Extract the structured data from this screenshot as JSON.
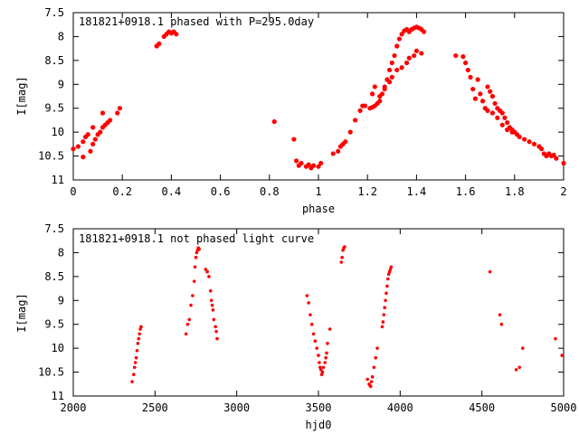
{
  "chart_data": [
    {
      "type": "scatter",
      "title": "181821+0918.1 phased with P=295.0day",
      "xlabel": "phase",
      "ylabel": "I[mag]",
      "xlim": [
        0,
        2
      ],
      "ylim": [
        7.5,
        11
      ],
      "y_inverted": true,
      "x_ticks": [
        "0",
        "0.2",
        "0.4",
        "0.6",
        "0.8",
        "1",
        "1.2",
        "1.4",
        "1.6",
        "1.8",
        "2"
      ],
      "y_ticks": [
        "7.5",
        "8",
        "8.5",
        "9",
        "9.5",
        "10",
        "10.5",
        "11"
      ],
      "marker_color": "#ff0000",
      "series": [
        {
          "points": [
            [
              0.0,
              10.35
            ],
            [
              0.02,
              10.3
            ],
            [
              0.04,
              10.2
            ],
            [
              0.04,
              10.52
            ],
            [
              0.05,
              10.1
            ],
            [
              0.06,
              10.05
            ],
            [
              0.07,
              10.4
            ],
            [
              0.08,
              10.25
            ],
            [
              0.08,
              9.9
            ],
            [
              0.09,
              10.15
            ],
            [
              0.1,
              10.05
            ],
            [
              0.11,
              10.0
            ],
            [
              0.12,
              9.9
            ],
            [
              0.12,
              9.6
            ],
            [
              0.13,
              9.85
            ],
            [
              0.14,
              9.8
            ],
            [
              0.15,
              9.75
            ],
            [
              0.18,
              9.6
            ],
            [
              0.19,
              9.5
            ],
            [
              0.34,
              8.2
            ],
            [
              0.35,
              8.15
            ],
            [
              0.37,
              8.0
            ],
            [
              0.38,
              7.95
            ],
            [
              0.39,
              7.9
            ],
            [
              0.4,
              7.93
            ],
            [
              0.41,
              7.9
            ],
            [
              0.42,
              7.95
            ],
            [
              0.82,
              9.78
            ],
            [
              0.9,
              10.15
            ],
            [
              0.91,
              10.6
            ],
            [
              0.92,
              10.7
            ],
            [
              0.93,
              10.65
            ],
            [
              0.95,
              10.72
            ],
            [
              0.96,
              10.68
            ],
            [
              0.97,
              10.75
            ],
            [
              0.98,
              10.7
            ],
            [
              1.0,
              10.72
            ],
            [
              1.01,
              10.65
            ],
            [
              1.06,
              10.45
            ],
            [
              1.08,
              10.4
            ],
            [
              1.09,
              10.3
            ],
            [
              1.1,
              10.25
            ],
            [
              1.11,
              10.2
            ],
            [
              1.13,
              10.0
            ],
            [
              1.15,
              9.75
            ],
            [
              1.17,
              9.55
            ],
            [
              1.18,
              9.45
            ],
            [
              1.19,
              9.45
            ],
            [
              1.21,
              9.5
            ],
            [
              1.22,
              9.48
            ],
            [
              1.23,
              9.45
            ],
            [
              1.24,
              9.4
            ],
            [
              1.25,
              9.35
            ],
            [
              1.26,
              9.2
            ],
            [
              1.27,
              9.05
            ],
            [
              1.28,
              8.9
            ],
            [
              1.29,
              8.7
            ],
            [
              1.3,
              8.55
            ],
            [
              1.31,
              8.4
            ],
            [
              1.32,
              8.2
            ],
            [
              1.33,
              8.05
            ],
            [
              1.34,
              7.95
            ],
            [
              1.35,
              7.88
            ],
            [
              1.36,
              7.85
            ],
            [
              1.37,
              7.9
            ],
            [
              1.38,
              7.85
            ],
            [
              1.39,
              7.82
            ],
            [
              1.4,
              7.8
            ],
            [
              1.41,
              7.82
            ],
            [
              1.42,
              7.85
            ],
            [
              1.43,
              7.9
            ],
            [
              1.22,
              9.2
            ],
            [
              1.23,
              9.05
            ],
            [
              1.25,
              9.25
            ],
            [
              1.27,
              9.1
            ],
            [
              1.29,
              8.95
            ],
            [
              1.3,
              8.85
            ],
            [
              1.32,
              8.7
            ],
            [
              1.34,
              8.65
            ],
            [
              1.36,
              8.55
            ],
            [
              1.37,
              8.45
            ],
            [
              1.39,
              8.4
            ],
            [
              1.4,
              8.3
            ],
            [
              1.42,
              8.35
            ],
            [
              1.56,
              8.4
            ],
            [
              1.59,
              8.42
            ],
            [
              1.6,
              8.55
            ],
            [
              1.61,
              8.7
            ],
            [
              1.62,
              8.85
            ],
            [
              1.63,
              9.1
            ],
            [
              1.64,
              9.3
            ],
            [
              1.65,
              8.9
            ],
            [
              1.66,
              9.2
            ],
            [
              1.67,
              9.35
            ],
            [
              1.68,
              9.5
            ],
            [
              1.69,
              9.05
            ],
            [
              1.7,
              9.15
            ],
            [
              1.71,
              9.25
            ],
            [
              1.72,
              9.4
            ],
            [
              1.73,
              9.5
            ],
            [
              1.74,
              9.55
            ],
            [
              1.75,
              9.6
            ],
            [
              1.76,
              9.7
            ],
            [
              1.77,
              9.8
            ],
            [
              1.78,
              9.9
            ],
            [
              1.79,
              9.95
            ],
            [
              1.8,
              10.0
            ],
            [
              1.81,
              10.05
            ],
            [
              1.69,
              9.55
            ],
            [
              1.71,
              9.6
            ],
            [
              1.73,
              9.7
            ],
            [
              1.75,
              9.85
            ],
            [
              1.77,
              9.95
            ],
            [
              1.79,
              10.0
            ],
            [
              1.82,
              10.1
            ],
            [
              1.84,
              10.15
            ],
            [
              1.86,
              10.2
            ],
            [
              1.88,
              10.25
            ],
            [
              1.9,
              10.3
            ],
            [
              1.91,
              10.35
            ],
            [
              1.92,
              10.45
            ],
            [
              1.93,
              10.5
            ],
            [
              1.94,
              10.45
            ],
            [
              1.95,
              10.5
            ],
            [
              1.96,
              10.48
            ],
            [
              1.97,
              10.55
            ],
            [
              2.0,
              10.65
            ]
          ]
        }
      ]
    },
    {
      "type": "scatter",
      "title": "181821+0918.1 not phased light curve",
      "xlabel": "hjd0",
      "ylabel": "I[mag]",
      "xlim": [
        2000,
        5000
      ],
      "ylim": [
        7.5,
        11
      ],
      "y_inverted": true,
      "x_ticks": [
        "2000",
        "2500",
        "3000",
        "3500",
        "4000",
        "4500",
        "5000"
      ],
      "y_ticks": [
        "7.5",
        "8",
        "8.5",
        "9",
        "9.5",
        "10",
        "10.5",
        "11"
      ],
      "marker_color": "#ff0000",
      "series": [
        {
          "points": [
            [
              2360,
              10.7
            ],
            [
              2370,
              10.55
            ],
            [
              2375,
              10.4
            ],
            [
              2380,
              10.3
            ],
            [
              2385,
              10.2
            ],
            [
              2390,
              10.05
            ],
            [
              2395,
              9.9
            ],
            [
              2400,
              9.8
            ],
            [
              2405,
              9.7
            ],
            [
              2410,
              9.6
            ],
            [
              2415,
              9.55
            ],
            [
              2690,
              9.7
            ],
            [
              2700,
              9.5
            ],
            [
              2710,
              9.4
            ],
            [
              2720,
              9.1
            ],
            [
              2730,
              8.9
            ],
            [
              2740,
              8.6
            ],
            [
              2745,
              8.3
            ],
            [
              2750,
              8.1
            ],
            [
              2755,
              8.0
            ],
            [
              2760,
              7.95
            ],
            [
              2765,
              7.9
            ],
            [
              2770,
              7.93
            ],
            [
              2810,
              8.35
            ],
            [
              2820,
              8.4
            ],
            [
              2830,
              8.5
            ],
            [
              2840,
              8.8
            ],
            [
              2845,
              9.0
            ],
            [
              2850,
              9.1
            ],
            [
              2855,
              9.2
            ],
            [
              2860,
              9.4
            ],
            [
              2870,
              9.55
            ],
            [
              2875,
              9.65
            ],
            [
              2880,
              9.8
            ],
            [
              3430,
              8.9
            ],
            [
              3440,
              9.05
            ],
            [
              3450,
              9.3
            ],
            [
              3460,
              9.5
            ],
            [
              3470,
              9.7
            ],
            [
              3480,
              9.85
            ],
            [
              3490,
              10.0
            ],
            [
              3500,
              10.15
            ],
            [
              3505,
              10.3
            ],
            [
              3510,
              10.4
            ],
            [
              3515,
              10.45
            ],
            [
              3520,
              10.55
            ],
            [
              3525,
              10.5
            ],
            [
              3530,
              10.4
            ],
            [
              3540,
              10.3
            ],
            [
              3545,
              10.2
            ],
            [
              3550,
              10.1
            ],
            [
              3555,
              9.9
            ],
            [
              3570,
              9.6
            ],
            [
              3640,
              8.2
            ],
            [
              3645,
              8.1
            ],
            [
              3650,
              7.95
            ],
            [
              3655,
              7.9
            ],
            [
              3660,
              7.88
            ],
            [
              3800,
              10.65
            ],
            [
              3810,
              10.75
            ],
            [
              3815,
              10.78
            ],
            [
              3820,
              10.8
            ],
            [
              3825,
              10.7
            ],
            [
              3830,
              10.6
            ],
            [
              3840,
              10.4
            ],
            [
              3850,
              10.2
            ],
            [
              3860,
              10.0
            ],
            [
              3890,
              9.55
            ],
            [
              3895,
              9.45
            ],
            [
              3900,
              9.3
            ],
            [
              3905,
              9.15
            ],
            [
              3910,
              9.0
            ],
            [
              3915,
              8.85
            ],
            [
              3920,
              8.7
            ],
            [
              3925,
              8.55
            ],
            [
              3930,
              8.45
            ],
            [
              3935,
              8.4
            ],
            [
              3940,
              8.35
            ],
            [
              3945,
              8.3
            ],
            [
              4550,
              8.4
            ],
            [
              4610,
              9.3
            ],
            [
              4620,
              9.5
            ],
            [
              4710,
              10.45
            ],
            [
              4730,
              10.4
            ],
            [
              4750,
              10.0
            ],
            [
              4950,
              9.8
            ],
            [
              4990,
              10.15
            ]
          ]
        }
      ]
    }
  ]
}
